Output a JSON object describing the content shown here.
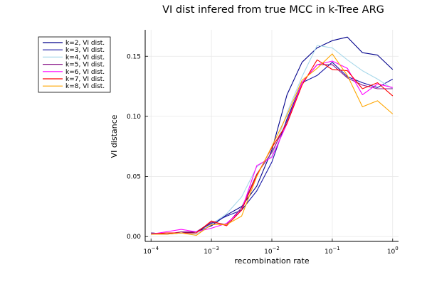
{
  "chart_data": {
    "type": "line",
    "title": "VI dist infered from true MCC in k-Tree ARG",
    "xlabel": "recombination rate",
    "ylabel": "VI distance",
    "x_scale": "log10",
    "xlim": [
      8e-05,
      1.25
    ],
    "ylim": [
      -0.004,
      0.172
    ],
    "grid": true,
    "legend_position": "outside-top-left",
    "x_ticks": [
      {
        "value": 0.0001,
        "base": "10",
        "exp": "−4"
      },
      {
        "value": 0.001,
        "base": "10",
        "exp": "−3"
      },
      {
        "value": 0.01,
        "base": "10",
        "exp": "−2"
      },
      {
        "value": 0.1,
        "base": "10",
        "exp": "−1"
      },
      {
        "value": 1,
        "base": "10",
        "exp": "0"
      }
    ],
    "y_ticks": [
      {
        "value": 0.0,
        "label": "0.00"
      },
      {
        "value": 0.05,
        "label": "0.05"
      },
      {
        "value": 0.1,
        "label": "0.10"
      },
      {
        "value": 0.15,
        "label": "0.15"
      }
    ],
    "x": [
      0.0001,
      0.000178,
      0.000316,
      0.000562,
      0.001,
      0.00178,
      0.00316,
      0.00562,
      0.01,
      0.0178,
      0.0316,
      0.0562,
      0.1,
      0.178,
      0.316,
      0.562,
      1.0
    ],
    "series": [
      {
        "name": "k=2, VI dist.",
        "color": "#00008b",
        "values": [
          0.003,
          0.002,
          0.003,
          0.004,
          0.009,
          0.018,
          0.025,
          0.042,
          0.072,
          0.118,
          0.145,
          0.157,
          0.163,
          0.166,
          0.153,
          0.151,
          0.139
        ]
      },
      {
        "name": "k=3, VI dist.",
        "color": "#1a1aa6",
        "values": [
          0.002,
          0.002,
          0.003,
          0.004,
          0.011,
          0.017,
          0.022,
          0.038,
          0.062,
          0.098,
          0.128,
          0.134,
          0.145,
          0.133,
          0.128,
          0.124,
          0.131
        ]
      },
      {
        "name": "k=4, VI dist.",
        "color": "#a8d8ea",
        "values": [
          0.002,
          0.002,
          0.003,
          0.002,
          0.01,
          0.019,
          0.033,
          0.058,
          0.067,
          0.103,
          0.133,
          0.159,
          0.157,
          0.147,
          0.138,
          0.131,
          0.123
        ]
      },
      {
        "name": "k=5, VI dist.",
        "color": "#8b1a8b",
        "values": [
          0.003,
          0.002,
          0.004,
          0.004,
          0.012,
          0.01,
          0.024,
          0.052,
          0.07,
          0.096,
          0.128,
          0.143,
          0.143,
          0.132,
          0.126,
          0.123,
          0.123
        ]
      },
      {
        "name": "k=6, VI dist.",
        "color": "#ff00ff",
        "values": [
          0.002,
          0.004,
          0.006,
          0.004,
          0.007,
          0.011,
          0.022,
          0.059,
          0.066,
          0.094,
          0.128,
          0.143,
          0.146,
          0.14,
          0.118,
          0.127,
          0.124
        ]
      },
      {
        "name": "k=7, VI dist.",
        "color": "#ff0000",
        "values": [
          0.002,
          0.003,
          0.003,
          0.003,
          0.013,
          0.009,
          0.022,
          0.051,
          0.074,
          0.094,
          0.126,
          0.147,
          0.139,
          0.138,
          0.123,
          0.128,
          0.117
        ]
      },
      {
        "name": "k=8, VI dist.",
        "color": "#ffa500",
        "values": [
          0.002,
          0.002,
          0.003,
          0.001,
          0.01,
          0.01,
          0.017,
          0.05,
          0.075,
          0.101,
          0.13,
          0.14,
          0.152,
          0.134,
          0.108,
          0.113,
          0.102
        ]
      }
    ]
  }
}
